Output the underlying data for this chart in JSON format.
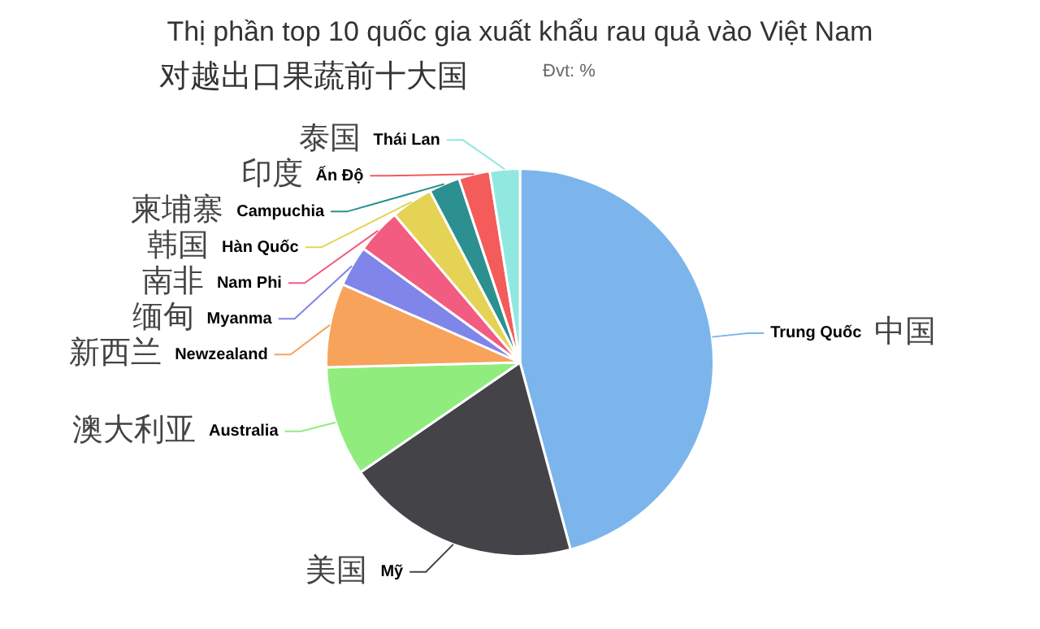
{
  "chart_data": {
    "type": "pie",
    "title": "Thị phần top 10 quốc gia xuất khẩu rau quả vào Việt Nam",
    "subtitle": "对越出口果蔬前十大国",
    "annotations": [
      "Đvt: %"
    ],
    "categories": [
      "Trung Quốc\n中国",
      "Mỹ\n美国",
      "Australia\n澳大利亚",
      "Newzealand\n新西兰",
      "Myanma\n缅甸",
      "Nam Phi\n南非",
      "Hàn Quốc\n韩国",
      "Campuchia\n柬埔寨",
      "Ấn Độ\n印度",
      "Thái Lan\n泰国"
    ],
    "values": [
      45.8,
      19.6,
      9.2,
      7.0,
      3.4,
      3.8,
      3.5,
      2.6,
      2.6,
      2.5
    ],
    "colors": [
      "#7cb5ec",
      "#434348",
      "#90ed7d",
      "#f7a35c",
      "#8085e9",
      "#f15c80",
      "#e4d354",
      "#2b908f",
      "#f45b5b",
      "#91e8e1"
    ],
    "legend": false
  }
}
